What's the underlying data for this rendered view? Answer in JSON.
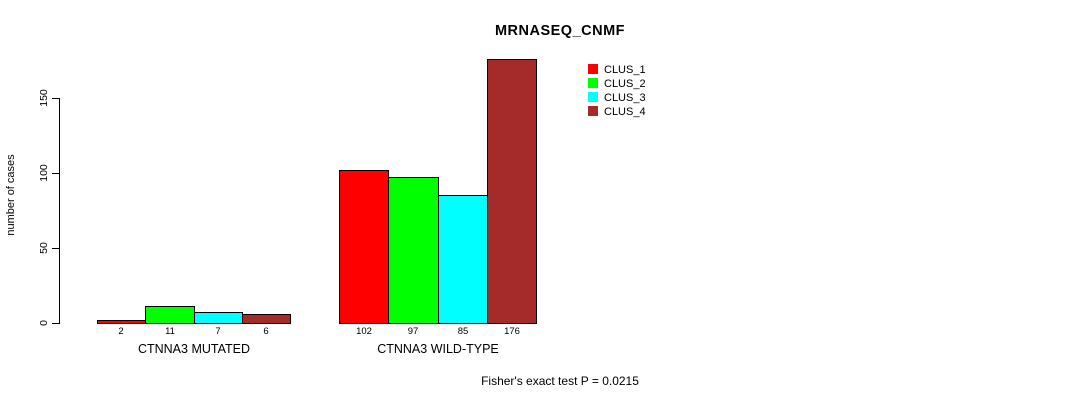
{
  "chart_data": {
    "type": "bar",
    "title": "MRNASEQ_CNMF",
    "ylabel": "number of cases",
    "xlabel": "",
    "categories": [
      "CTNNA3 MUTATED",
      "CTNNA3 WILD-TYPE"
    ],
    "series": [
      {
        "name": "CLUS_1",
        "color": "#FF0000",
        "values": [
          2,
          102
        ]
      },
      {
        "name": "CLUS_2",
        "color": "#00FF00",
        "values": [
          11,
          97
        ]
      },
      {
        "name": "CLUS_3",
        "color": "#00FFFF",
        "values": [
          7,
          85
        ]
      },
      {
        "name": "CLUS_4",
        "color": "#A52A2A",
        "values": [
          6,
          176
        ]
      }
    ],
    "yticks": [
      0,
      50,
      100,
      150
    ],
    "ylim": [
      0,
      176
    ],
    "grid": false,
    "legend_position": "top-right",
    "bar_border_color": "#000000",
    "axis_color": "#000000",
    "text_color": "#000000",
    "background": "#FFFFFF",
    "annotation": "Fisher's exact test P = 0.0215"
  }
}
